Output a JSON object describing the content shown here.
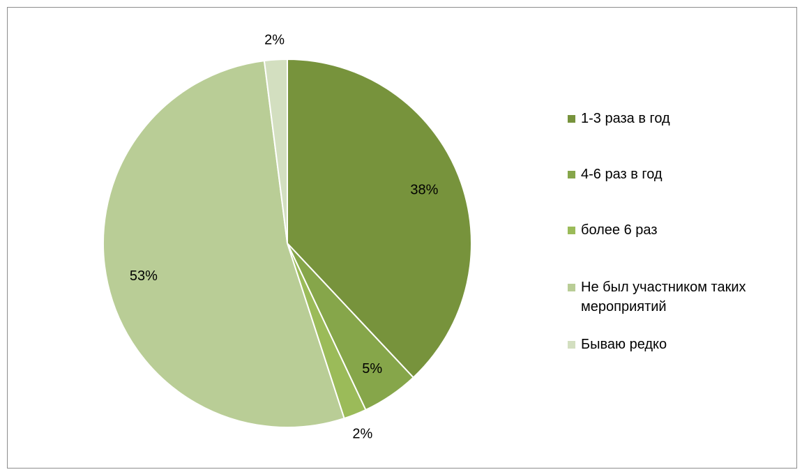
{
  "chart_data": {
    "type": "pie",
    "title": "",
    "legend_position": "right",
    "slices": [
      {
        "label": "1-3 раза в год",
        "value": 38,
        "value_label": "38%",
        "color": "#77933c"
      },
      {
        "label": "4-6 раз в год",
        "value": 5,
        "value_label": "5%",
        "color": "#86a64a"
      },
      {
        "label": "более 6 раз",
        "value": 2,
        "value_label": "2%",
        "color": "#9bbb59"
      },
      {
        "label": "Не был участником таких мероприятий",
        "value": 53,
        "value_label": "53%",
        "color": "#b9cd96"
      },
      {
        "label": "Бываю редко",
        "value": 2,
        "value_label": "2%",
        "color": "#d3dfc0"
      }
    ]
  }
}
